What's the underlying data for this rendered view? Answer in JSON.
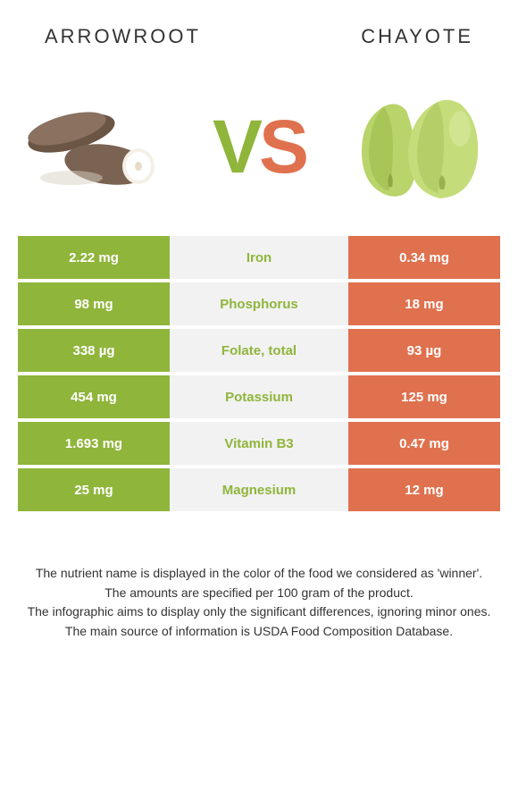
{
  "header": {
    "left": "ARROWROOT",
    "right": "CHAYOTE"
  },
  "vs": {
    "v": "V",
    "s": "S"
  },
  "colors": {
    "left": "#8fb53b",
    "right": "#e0714e",
    "mid_bg": "#f2f2f2",
    "text": "#333333"
  },
  "rows": [
    {
      "left": "2.22 mg",
      "mid": "Iron",
      "mid_color": "#8fb53b",
      "right": "0.34 mg"
    },
    {
      "left": "98 mg",
      "mid": "Phosphorus",
      "mid_color": "#8fb53b",
      "right": "18 mg"
    },
    {
      "left": "338 µg",
      "mid": "Folate, total",
      "mid_color": "#8fb53b",
      "right": "93 µg"
    },
    {
      "left": "454 mg",
      "mid": "Potassium",
      "mid_color": "#8fb53b",
      "right": "125 mg"
    },
    {
      "left": "1.693 mg",
      "mid": "Vitamin B3",
      "mid_color": "#8fb53b",
      "right": "0.47 mg"
    },
    {
      "left": "25 mg",
      "mid": "Magnesium",
      "mid_color": "#8fb53b",
      "right": "12 mg"
    }
  ],
  "footnotes": [
    "The nutrient name is displayed in the color of the food we considered as 'winner'.",
    "The amounts are specified per 100 gram of the product.",
    "The infographic aims to display only the significant differences, ignoring minor ones.",
    "The main source of information is USDA Food Composition Database."
  ]
}
